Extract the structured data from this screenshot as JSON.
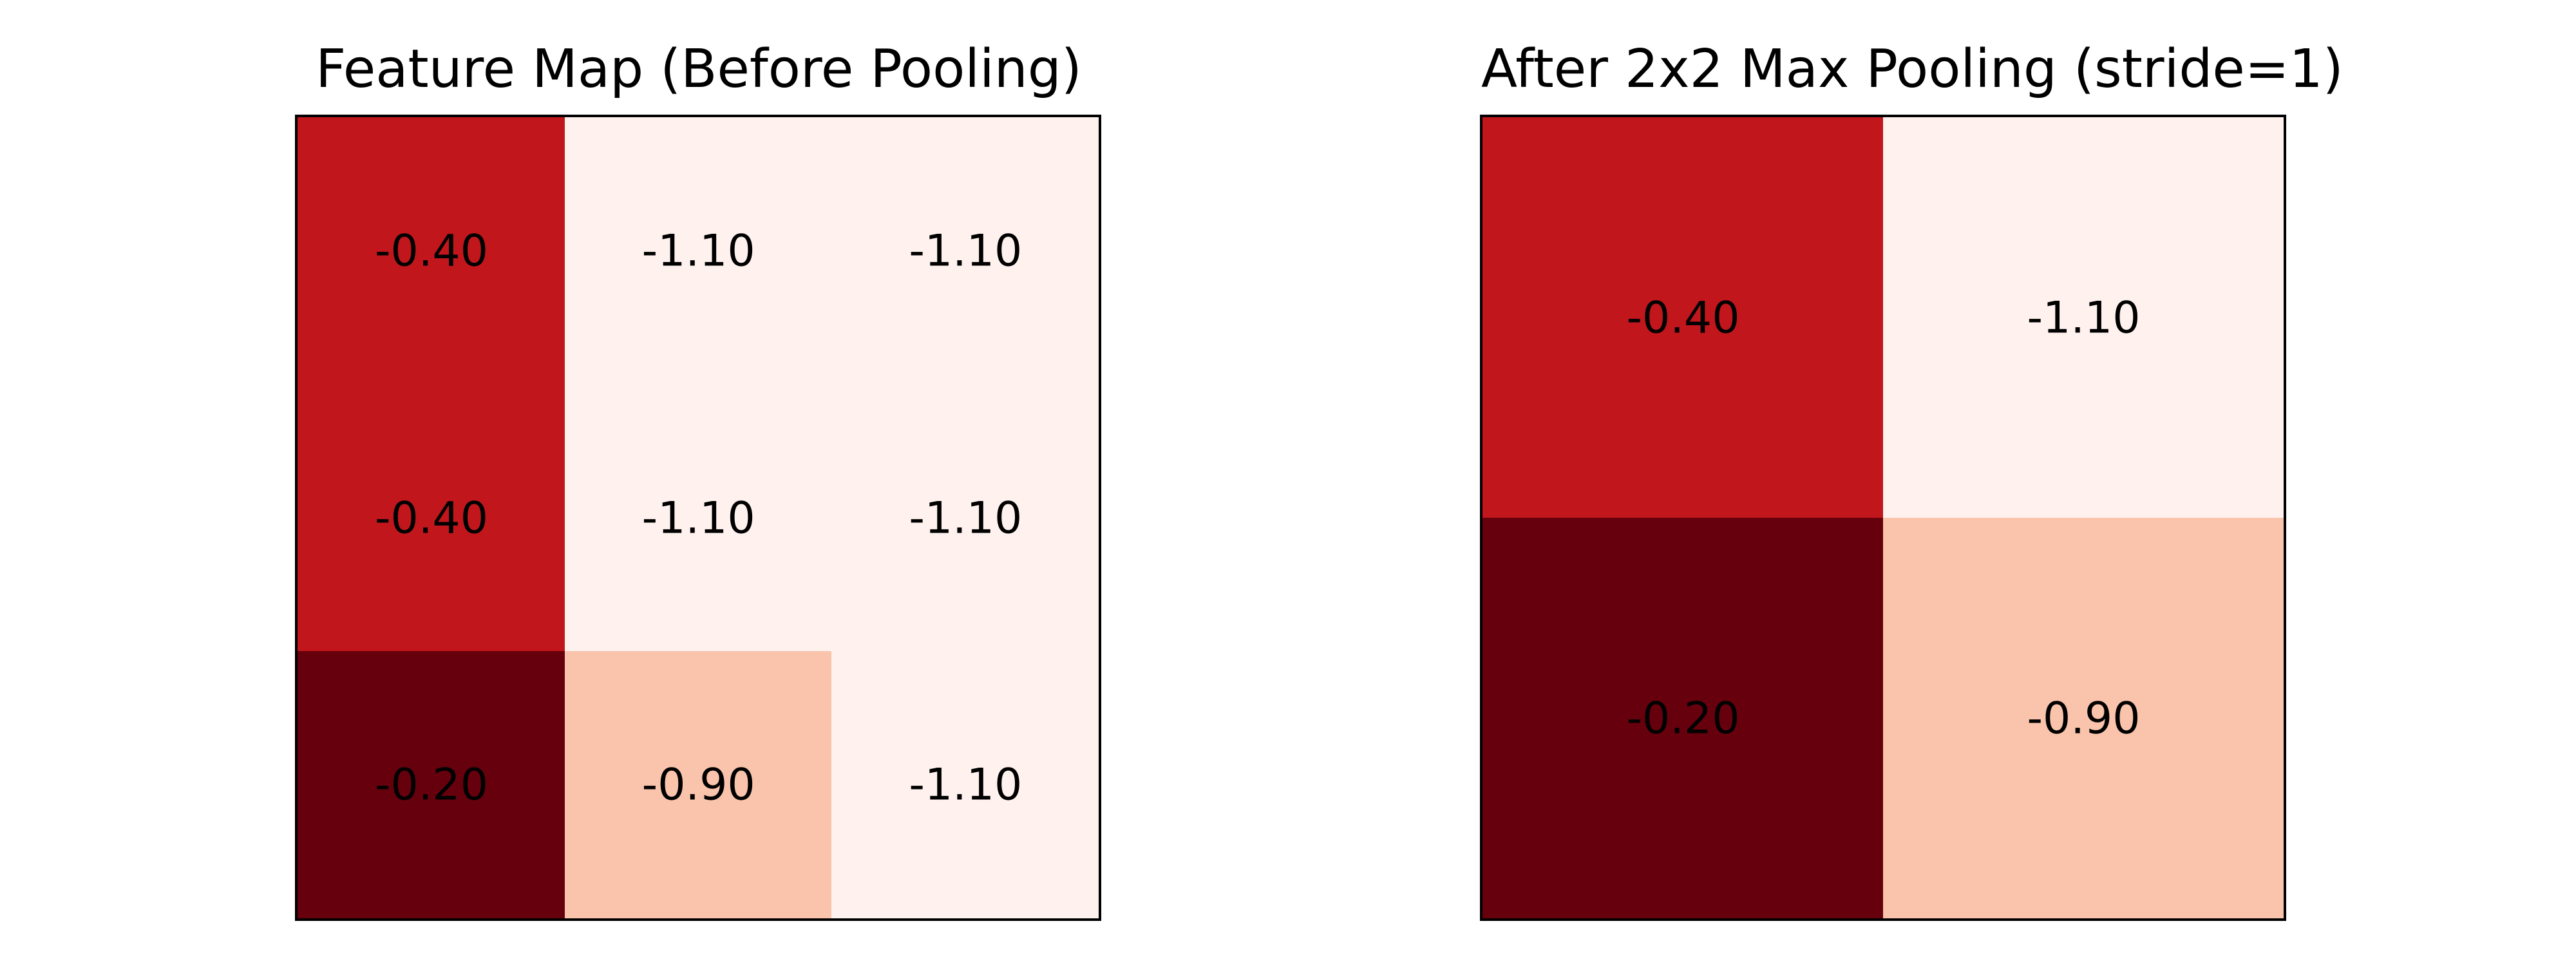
{
  "chart_data": [
    {
      "type": "heatmap",
      "title": "Feature Map (Before Pooling)",
      "rows": 3,
      "cols": 3,
      "values": [
        [
          -0.4,
          -1.1,
          -1.1
        ],
        [
          -0.4,
          -1.1,
          -1.1
        ],
        [
          -0.2,
          -0.9,
          -1.1
        ]
      ],
      "labels": [
        [
          "-0.40",
          "-1.10",
          "-1.10"
        ],
        [
          "-0.40",
          "-1.10",
          "-1.10"
        ],
        [
          "-0.20",
          "-0.90",
          "-1.10"
        ]
      ],
      "colormap": "Reds",
      "color_scale": {
        "-1.10": "#fff2ee",
        "-0.90": "#f9c4ab",
        "-0.40": "#c1161c",
        "-0.20": "#67000d"
      },
      "grid": false
    },
    {
      "type": "heatmap",
      "title": "After 2x2 Max Pooling (stride=1)",
      "rows": 2,
      "cols": 2,
      "values": [
        [
          -0.4,
          -1.1
        ],
        [
          -0.2,
          -0.9
        ]
      ],
      "labels": [
        [
          "-0.40",
          "-1.10"
        ],
        [
          "-0.20",
          "-0.90"
        ]
      ],
      "colormap": "Reds",
      "color_scale": {
        "-1.10": "#fff2ee",
        "-0.90": "#f9c4ab",
        "-0.40": "#c1161c",
        "-0.20": "#67000d"
      },
      "grid": false
    }
  ]
}
